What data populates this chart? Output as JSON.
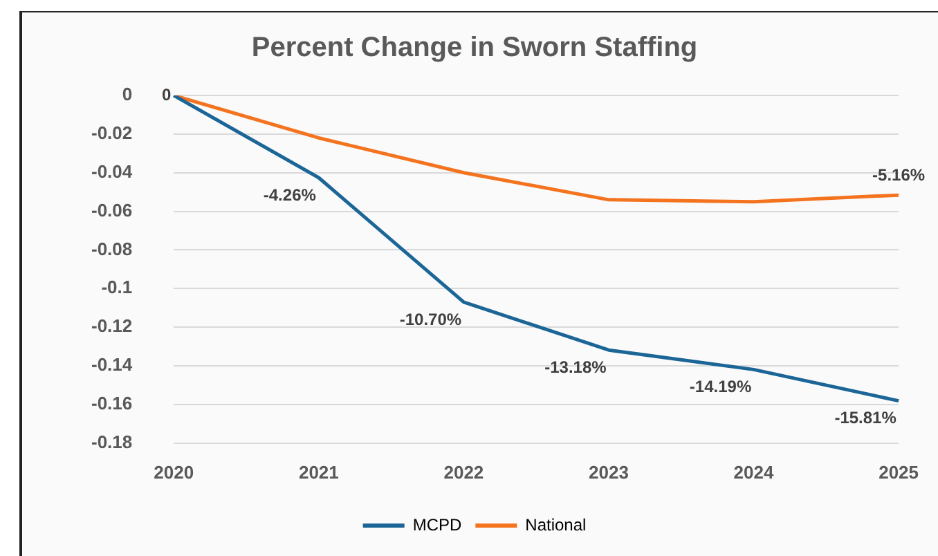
{
  "chart_data": {
    "type": "line",
    "title": "Percent Change in Sworn Staffing",
    "categories": [
      "2020",
      "2021",
      "2022",
      "2023",
      "2024",
      "2025"
    ],
    "series": [
      {
        "name": "MCPD",
        "color": "#1c6697",
        "values": [
          0,
          -0.0426,
          -0.107,
          -0.1318,
          -0.1419,
          -0.1581
        ],
        "value_labels": [
          "0",
          "-4.26%",
          "-10.70%",
          "-13.18%",
          "-14.19%",
          "-15.81%"
        ]
      },
      {
        "name": "National",
        "color": "#f4731f",
        "values": [
          0,
          -0.022,
          -0.04,
          -0.054,
          -0.055,
          -0.0516
        ],
        "value_labels": [
          null,
          null,
          null,
          null,
          null,
          "-5.16%"
        ]
      }
    ],
    "ylim": [
      -0.18,
      0
    ],
    "yticks": [
      0,
      -0.02,
      -0.04,
      -0.06,
      -0.08,
      -0.1,
      -0.12,
      -0.14,
      -0.16,
      -0.18
    ],
    "grid": "y",
    "legend": "bottom",
    "marker": "none",
    "line_style": "solid"
  }
}
